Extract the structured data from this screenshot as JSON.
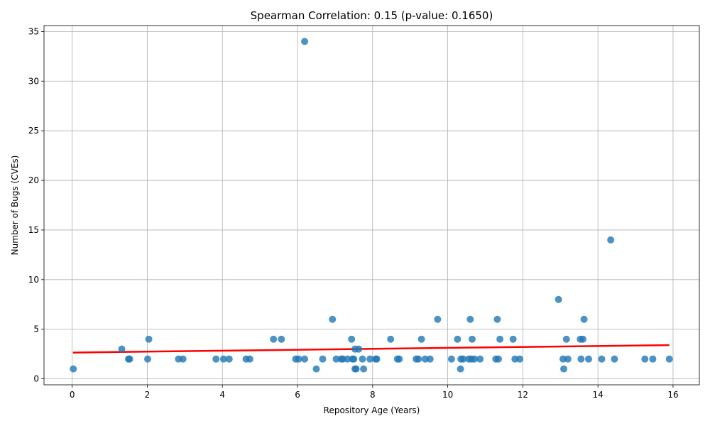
{
  "chart_data": {
    "type": "scatter",
    "title": "Spearman Correlation: 0.15 (p-value: 0.1650)",
    "xlabel": "Repository Age (Years)",
    "ylabel": "Number of Bugs (CVEs)",
    "xlim": [
      -0.75,
      16.7
    ],
    "ylim": [
      -0.6,
      35.6
    ],
    "xticks": [
      0,
      2,
      4,
      6,
      8,
      10,
      12,
      14,
      16
    ],
    "yticks": [
      0,
      5,
      10,
      15,
      20,
      25,
      30,
      35
    ],
    "grid": true,
    "colors": {
      "points": "#1f77b4",
      "trend": "#ff0000"
    },
    "trend_line": {
      "x": [
        0.02,
        15.9
      ],
      "y": [
        2.65,
        3.4
      ]
    },
    "points": [
      {
        "x": 0.03,
        "y": 1
      },
      {
        "x": 1.32,
        "y": 3
      },
      {
        "x": 1.5,
        "y": 2
      },
      {
        "x": 1.53,
        "y": 2
      },
      {
        "x": 2.01,
        "y": 2
      },
      {
        "x": 2.04,
        "y": 4
      },
      {
        "x": 2.83,
        "y": 2
      },
      {
        "x": 2.95,
        "y": 2
      },
      {
        "x": 3.83,
        "y": 2
      },
      {
        "x": 4.03,
        "y": 2
      },
      {
        "x": 4.18,
        "y": 2
      },
      {
        "x": 4.63,
        "y": 2
      },
      {
        "x": 4.73,
        "y": 2
      },
      {
        "x": 5.36,
        "y": 4
      },
      {
        "x": 5.57,
        "y": 4
      },
      {
        "x": 5.95,
        "y": 2
      },
      {
        "x": 6.03,
        "y": 2
      },
      {
        "x": 6.19,
        "y": 34
      },
      {
        "x": 6.19,
        "y": 2
      },
      {
        "x": 6.5,
        "y": 1
      },
      {
        "x": 6.67,
        "y": 2
      },
      {
        "x": 6.93,
        "y": 6
      },
      {
        "x": 7.03,
        "y": 2
      },
      {
        "x": 7.16,
        "y": 2
      },
      {
        "x": 7.21,
        "y": 2
      },
      {
        "x": 7.33,
        "y": 2
      },
      {
        "x": 7.44,
        "y": 4
      },
      {
        "x": 7.46,
        "y": 2
      },
      {
        "x": 7.5,
        "y": 2
      },
      {
        "x": 7.53,
        "y": 3
      },
      {
        "x": 7.53,
        "y": 1
      },
      {
        "x": 7.56,
        "y": 1
      },
      {
        "x": 7.63,
        "y": 3
      },
      {
        "x": 7.73,
        "y": 2
      },
      {
        "x": 7.76,
        "y": 1
      },
      {
        "x": 7.93,
        "y": 2
      },
      {
        "x": 8.08,
        "y": 2
      },
      {
        "x": 8.11,
        "y": 2
      },
      {
        "x": 8.48,
        "y": 4
      },
      {
        "x": 8.66,
        "y": 2
      },
      {
        "x": 8.71,
        "y": 2
      },
      {
        "x": 9.16,
        "y": 2
      },
      {
        "x": 9.22,
        "y": 2
      },
      {
        "x": 9.3,
        "y": 4
      },
      {
        "x": 9.4,
        "y": 2
      },
      {
        "x": 9.53,
        "y": 2
      },
      {
        "x": 9.73,
        "y": 6
      },
      {
        "x": 10.1,
        "y": 2
      },
      {
        "x": 10.26,
        "y": 4
      },
      {
        "x": 10.34,
        "y": 1
      },
      {
        "x": 10.35,
        "y": 2
      },
      {
        "x": 10.41,
        "y": 2
      },
      {
        "x": 10.56,
        "y": 2
      },
      {
        "x": 10.6,
        "y": 6
      },
      {
        "x": 10.63,
        "y": 2
      },
      {
        "x": 10.65,
        "y": 4
      },
      {
        "x": 10.71,
        "y": 2
      },
      {
        "x": 10.86,
        "y": 2
      },
      {
        "x": 11.28,
        "y": 2
      },
      {
        "x": 11.32,
        "y": 6
      },
      {
        "x": 11.35,
        "y": 2
      },
      {
        "x": 11.39,
        "y": 4
      },
      {
        "x": 11.74,
        "y": 4
      },
      {
        "x": 11.79,
        "y": 2
      },
      {
        "x": 11.92,
        "y": 2
      },
      {
        "x": 12.95,
        "y": 8
      },
      {
        "x": 13.07,
        "y": 2
      },
      {
        "x": 13.09,
        "y": 1
      },
      {
        "x": 13.16,
        "y": 4
      },
      {
        "x": 13.2,
        "y": 2
      },
      {
        "x": 13.53,
        "y": 4
      },
      {
        "x": 13.55,
        "y": 2
      },
      {
        "x": 13.6,
        "y": 4
      },
      {
        "x": 13.63,
        "y": 6
      },
      {
        "x": 13.75,
        "y": 2
      },
      {
        "x": 14.1,
        "y": 2
      },
      {
        "x": 14.34,
        "y": 14
      },
      {
        "x": 14.44,
        "y": 2
      },
      {
        "x": 15.25,
        "y": 2
      },
      {
        "x": 15.46,
        "y": 2
      },
      {
        "x": 15.9,
        "y": 2
      }
    ]
  }
}
